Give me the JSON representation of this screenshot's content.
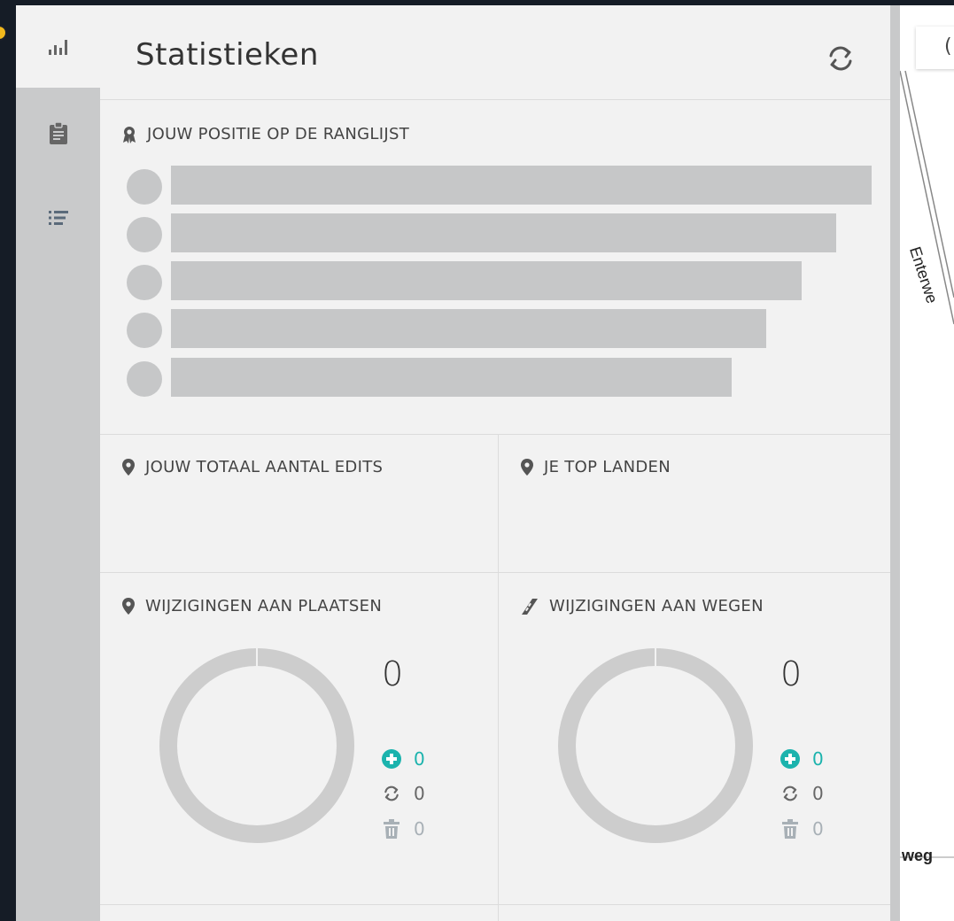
{
  "header": {
    "title": "Statistieken"
  },
  "rail": {
    "items": [
      {
        "icon": "bar-chart-icon",
        "active": true
      },
      {
        "icon": "clipboard-icon",
        "active": false
      },
      {
        "icon": "list-icon",
        "active": false
      }
    ]
  },
  "leaderboard": {
    "heading": "JOUW POSITIE OP DE RANGLIJST",
    "icon": "award-ribbon-icon"
  },
  "total_edits": {
    "heading": "JOUW TOTAAL AANTAL EDITS",
    "icon": "map-pin-icon"
  },
  "top_countries": {
    "heading": "JE TOP LANDEN",
    "icon": "map-pin-icon"
  },
  "places": {
    "heading": "WIJZIGINGEN AAN PLAATSEN",
    "icon": "map-pin-icon",
    "total": "0",
    "added": "0",
    "modified": "0",
    "deleted": "0"
  },
  "roads": {
    "heading": "WIJZIGINGEN AAN WEGEN",
    "icon": "road-icon",
    "total": "0",
    "added": "0",
    "modified": "0",
    "deleted": "0"
  },
  "map": {
    "chip_text": "(",
    "road_label_vertical": "Enterwe",
    "road_label_bottom": "weg"
  },
  "colors": {
    "accent_added": "#1bb3ad",
    "placeholder_gray": "#c6c7c8",
    "panel_bg": "#f2f2f2",
    "rail_bg": "#c9cacb",
    "badge": "#f1b81c"
  }
}
